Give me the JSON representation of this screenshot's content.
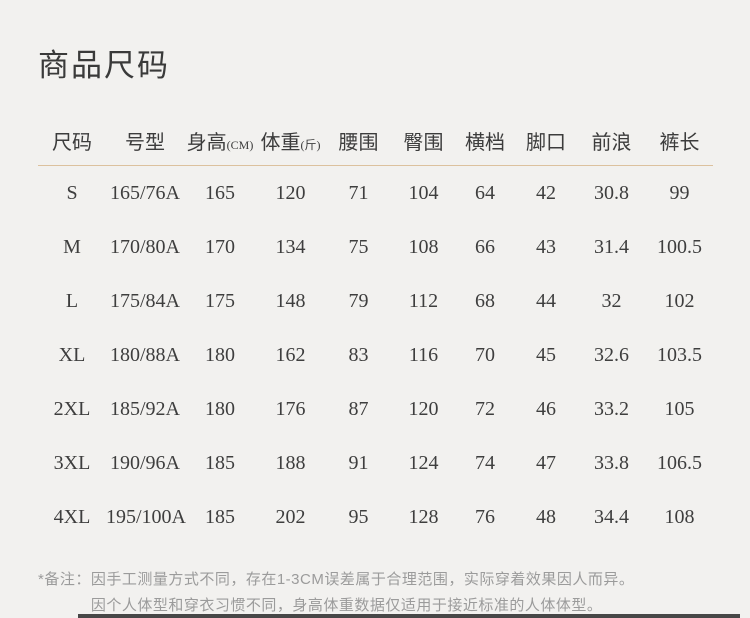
{
  "page": {
    "title": "商品尺码"
  },
  "table": {
    "columns": [
      {
        "label": "尺码",
        "unit": ""
      },
      {
        "label": "号型",
        "unit": ""
      },
      {
        "label": "身高",
        "unit": "(CM)"
      },
      {
        "label": "体重",
        "unit": "(斤)"
      },
      {
        "label": "腰围",
        "unit": ""
      },
      {
        "label": "臀围",
        "unit": ""
      },
      {
        "label": "横档",
        "unit": ""
      },
      {
        "label": "脚口",
        "unit": ""
      },
      {
        "label": "前浪",
        "unit": ""
      },
      {
        "label": "裤长",
        "unit": ""
      }
    ],
    "rows": [
      [
        "S",
        "165/76A",
        "165",
        "120",
        "71",
        "104",
        "64",
        "42",
        "30.8",
        "99"
      ],
      [
        "M",
        "170/80A",
        "170",
        "134",
        "75",
        "108",
        "66",
        "43",
        "31.4",
        "100.5"
      ],
      [
        "L",
        "175/84A",
        "175",
        "148",
        "79",
        "112",
        "68",
        "44",
        "32",
        "102"
      ],
      [
        "XL",
        "180/88A",
        "180",
        "162",
        "83",
        "116",
        "70",
        "45",
        "32.6",
        "103.5"
      ],
      [
        "2XL",
        "185/92A",
        "180",
        "176",
        "87",
        "120",
        "72",
        "46",
        "33.2",
        "105"
      ],
      [
        "3XL",
        "190/96A",
        "185",
        "188",
        "91",
        "124",
        "74",
        "47",
        "33.8",
        "106.5"
      ],
      [
        "4XL",
        "195/100A",
        "185",
        "202",
        "95",
        "128",
        "76",
        "48",
        "34.4",
        "108"
      ]
    ]
  },
  "note": {
    "label": "*备注：",
    "lines": [
      "因手工测量方式不同，存在1-3CM误差属于合理范围，实际穿着效果因人而异。",
      "因个人体型和穿衣习惯不同，身高体重数据仅适用于接近标准的人体体型。"
    ]
  },
  "colors": {
    "background": "#f2f1ef",
    "title_text": "#3a3a3a",
    "table_text": "#3e3e3e",
    "header_divider": "#dcc19e",
    "note_text": "#9b9b9b",
    "bottom_bar": "#474747"
  }
}
